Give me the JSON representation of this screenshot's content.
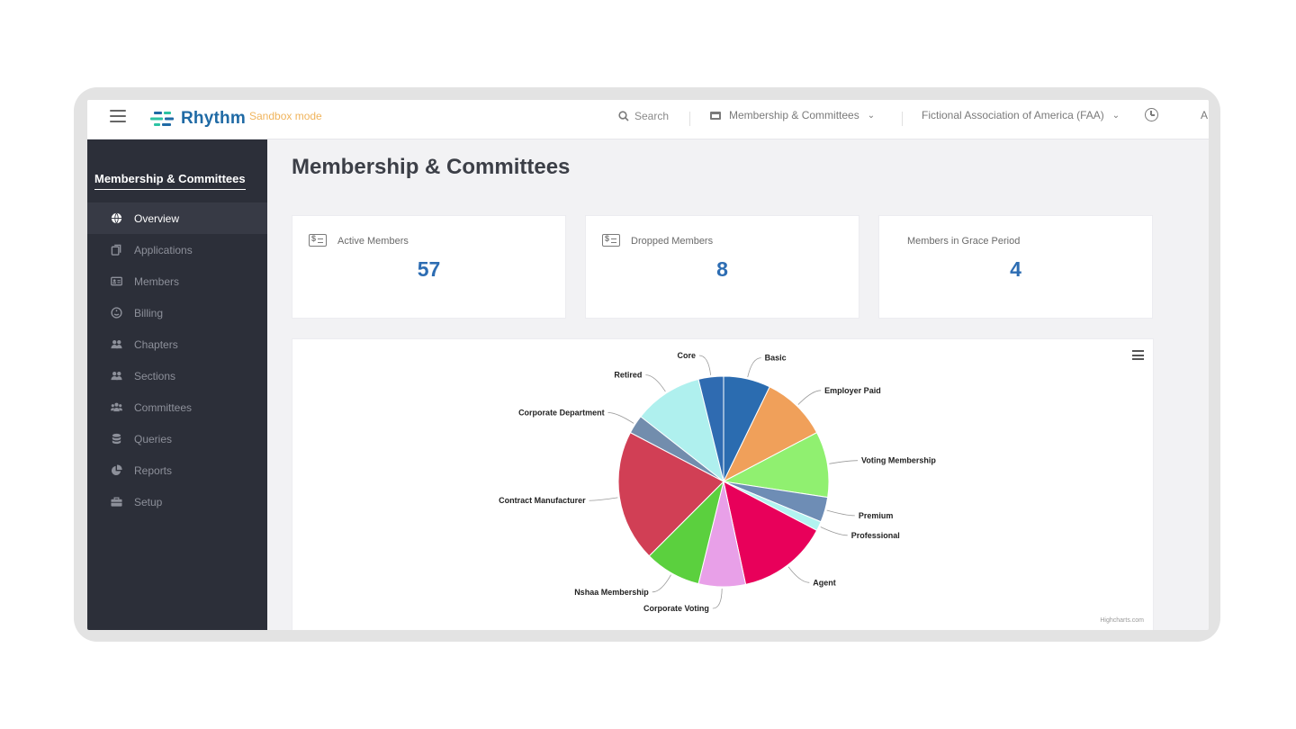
{
  "app": {
    "logo_text": "Rhythm",
    "mode_badge": "Sandbox mode"
  },
  "topbar": {
    "search_label": "Search",
    "module_label": "Membership & Committees",
    "org_label": "Fictional Association of America (FAA)",
    "user_initial": "A"
  },
  "sidebar": {
    "title": "Membership & Committees",
    "items": [
      {
        "label": "Overview",
        "icon": "globe-icon",
        "active": true
      },
      {
        "label": "Applications",
        "icon": "copy-icon"
      },
      {
        "label": "Members",
        "icon": "id-card-icon"
      },
      {
        "label": "Billing",
        "icon": "billing-icon"
      },
      {
        "label": "Chapters",
        "icon": "users-icon"
      },
      {
        "label": "Sections",
        "icon": "users-icon"
      },
      {
        "label": "Committees",
        "icon": "group-icon"
      },
      {
        "label": "Queries",
        "icon": "database-icon"
      },
      {
        "label": "Reports",
        "icon": "pie-chart-icon"
      },
      {
        "label": "Setup",
        "icon": "briefcase-icon"
      }
    ]
  },
  "main": {
    "title": "Membership & Committees",
    "stats": [
      {
        "label": "Active Members",
        "value": "57"
      },
      {
        "label": "Dropped Members",
        "value": "8"
      },
      {
        "label": "Members in Grace Period",
        "value": "4"
      }
    ],
    "credits": "Highcharts.com"
  },
  "colors": {
    "accent": "#2d6db3",
    "sidebar_bg": "#2c2f39",
    "sandbox": "#f0b45c"
  },
  "chart_data": {
    "type": "pie",
    "categories": [
      "Basic",
      "Employer Paid",
      "Voting Membership",
      "Premium",
      "Professional",
      "Agent",
      "Corporate Voting",
      "Nshaa Membership",
      "Contract Manufacturer",
      "Corporate Department",
      "Retired",
      "Core"
    ],
    "values": [
      7.5,
      10.5,
      10.5,
      4,
      1.5,
      14.5,
      7.5,
      9,
      21,
      3,
      11,
      4
    ],
    "colors": [
      "#2b6cb0",
      "#f0a05a",
      "#90f070",
      "#6e8db5",
      "#b2f3f0",
      "#e8005a",
      "#e8a0e8",
      "#5bd03e",
      "#d13f55",
      "#728dad",
      "#aff0ee",
      "#2f6bb1"
    ]
  }
}
